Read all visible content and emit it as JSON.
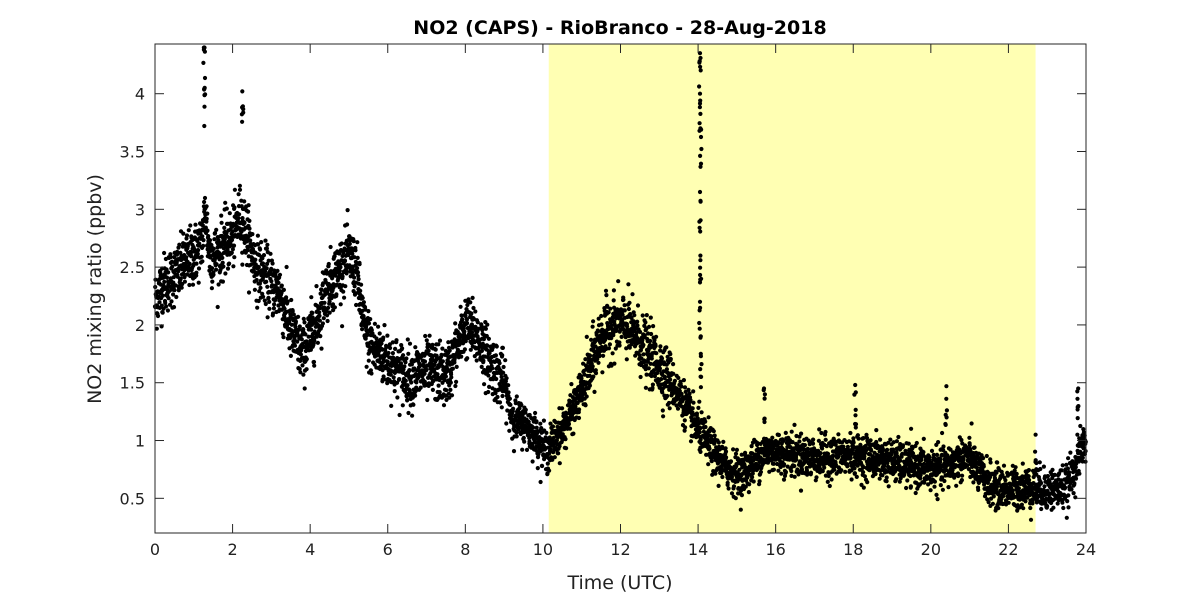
{
  "chart_data": {
    "type": "scatter",
    "title": "NO2 (CAPS) - RioBranco - 28-Aug-2018",
    "xlabel": "Time (UTC)",
    "ylabel": "NO2 mixing ratio (ppbv)",
    "xlim": [
      0,
      24
    ],
    "ylim": [
      0.2,
      4.43
    ],
    "xticks": [
      0,
      2,
      4,
      6,
      8,
      10,
      12,
      14,
      16,
      18,
      20,
      22,
      24
    ],
    "yticks": [
      0.5,
      1,
      1.5,
      2,
      2.5,
      3,
      3.5,
      4
    ],
    "grid": false,
    "marker_color": "#000000",
    "highlight_band": {
      "x": [
        10.15,
        22.7
      ],
      "color": "#ffffb3"
    },
    "series": [
      {
        "trend": [
          [
            0.0,
            2.2
          ],
          [
            0.2,
            2.35
          ],
          [
            0.4,
            2.4
          ],
          [
            0.6,
            2.45
          ],
          [
            0.8,
            2.55
          ],
          [
            1.0,
            2.6
          ],
          [
            1.2,
            2.7
          ],
          [
            1.3,
            3.0
          ],
          [
            1.4,
            2.6
          ],
          [
            1.6,
            2.6
          ],
          [
            1.8,
            2.7
          ],
          [
            2.0,
            2.75
          ],
          [
            2.2,
            2.95
          ],
          [
            2.4,
            2.75
          ],
          [
            2.6,
            2.5
          ],
          [
            2.8,
            2.45
          ],
          [
            3.0,
            2.35
          ],
          [
            3.2,
            2.3
          ],
          [
            3.5,
            1.95
          ],
          [
            3.8,
            1.75
          ],
          [
            4.0,
            1.9
          ],
          [
            4.2,
            2.05
          ],
          [
            4.4,
            2.3
          ],
          [
            4.6,
            2.4
          ],
          [
            4.8,
            2.5
          ],
          [
            5.0,
            2.6
          ],
          [
            5.2,
            2.45
          ],
          [
            5.4,
            1.95
          ],
          [
            5.6,
            1.8
          ],
          [
            5.8,
            1.75
          ],
          [
            6.0,
            1.7
          ],
          [
            6.3,
            1.6
          ],
          [
            6.6,
            1.55
          ],
          [
            6.9,
            1.6
          ],
          [
            7.2,
            1.6
          ],
          [
            7.5,
            1.55
          ],
          [
            7.8,
            1.8
          ],
          [
            8.0,
            2.0
          ],
          [
            8.3,
            1.9
          ],
          [
            8.6,
            1.7
          ],
          [
            8.8,
            1.6
          ],
          [
            9.0,
            1.5
          ],
          [
            9.2,
            1.2
          ],
          [
            9.5,
            1.15
          ],
          [
            9.8,
            1.05
          ],
          [
            10.1,
            0.9
          ],
          [
            10.3,
            1.0
          ],
          [
            10.6,
            1.15
          ],
          [
            10.9,
            1.35
          ],
          [
            11.2,
            1.6
          ],
          [
            11.5,
            1.9
          ],
          [
            11.8,
            2.0
          ],
          [
            12.1,
            2.0
          ],
          [
            12.4,
            1.9
          ],
          [
            12.7,
            1.75
          ],
          [
            13.0,
            1.65
          ],
          [
            13.3,
            1.5
          ],
          [
            13.6,
            1.35
          ],
          [
            13.9,
            1.15
          ],
          [
            14.2,
            1.0
          ],
          [
            14.5,
            0.85
          ],
          [
            14.8,
            0.75
          ],
          [
            15.1,
            0.7
          ],
          [
            15.4,
            0.8
          ],
          [
            15.7,
            0.9
          ],
          [
            16.0,
            0.9
          ],
          [
            16.5,
            0.88
          ],
          [
            17.0,
            0.85
          ],
          [
            17.5,
            0.85
          ],
          [
            18.0,
            0.88
          ],
          [
            18.5,
            0.85
          ],
          [
            19.0,
            0.82
          ],
          [
            19.5,
            0.78
          ],
          [
            20.0,
            0.75
          ],
          [
            20.5,
            0.78
          ],
          [
            20.8,
            0.85
          ],
          [
            21.0,
            0.85
          ],
          [
            21.3,
            0.7
          ],
          [
            21.6,
            0.6
          ],
          [
            22.0,
            0.58
          ],
          [
            22.4,
            0.6
          ],
          [
            22.8,
            0.58
          ],
          [
            23.2,
            0.58
          ],
          [
            23.5,
            0.6
          ],
          [
            23.7,
            0.75
          ],
          [
            23.9,
            0.95
          ],
          [
            24.0,
            1.0
          ]
        ],
        "spikes": [
          {
            "x": 1.27,
            "y": 4.4
          },
          {
            "x": 1.28,
            "y": 4.05
          },
          {
            "x": 2.25,
            "y": 4.02
          },
          {
            "x": 14.05,
            "y": 4.35
          },
          {
            "x": 14.05,
            "y": 4.0
          },
          {
            "x": 14.06,
            "y": 3.7
          },
          {
            "x": 14.05,
            "y": 3.15
          },
          {
            "x": 14.06,
            "y": 2.6
          },
          {
            "x": 14.05,
            "y": 2.2
          },
          {
            "x": 14.07,
            "y": 1.75
          },
          {
            "x": 15.7,
            "y": 1.45
          },
          {
            "x": 18.05,
            "y": 1.48
          },
          {
            "x": 20.4,
            "y": 1.47
          },
          {
            "x": 22.7,
            "y": 1.05
          },
          {
            "x": 23.8,
            "y": 1.45
          }
        ]
      }
    ]
  }
}
